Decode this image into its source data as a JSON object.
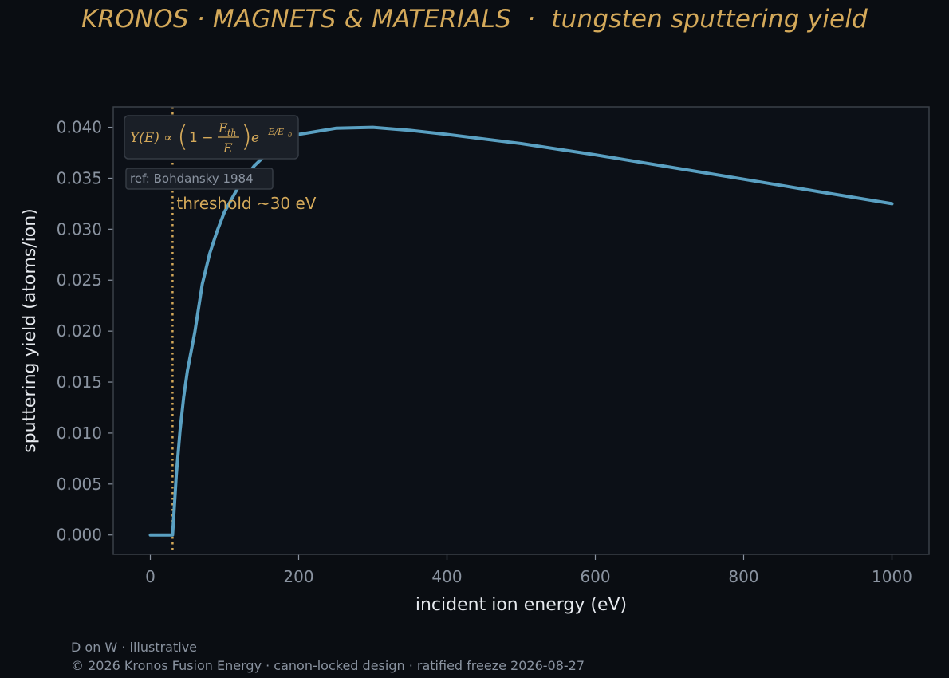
{
  "title": "KRONOS · MAGNETS & MATERIALS  ·  tungsten sputtering yield",
  "footer": {
    "note": "D on W · illustrative",
    "copyright": "© 2026 Kronos Fusion Energy · canon-locked design · ratified freeze 2026-08-27"
  },
  "colors": {
    "background": "#0a0d12",
    "plot_background": "#0c1017",
    "curve": "#5aa0c2",
    "accent": "#d4a95a",
    "text": "#e6e9ee",
    "tick_text": "#8a93a0",
    "spine": "#3a4048"
  },
  "chart_data": {
    "type": "line",
    "xlabel": "incident ion energy (eV)",
    "ylabel": "sputtering yield (atoms/ion)",
    "xlim": [
      -50,
      1050
    ],
    "ylim": [
      -0.0019,
      0.042
    ],
    "x_ticks": [
      0,
      200,
      400,
      600,
      800,
      1000
    ],
    "x_tick_labels": [
      "0",
      "200",
      "400",
      "600",
      "800",
      "1000"
    ],
    "y_ticks": [
      0,
      0.005,
      0.01,
      0.015,
      0.02,
      0.025,
      0.03,
      0.035,
      0.04
    ],
    "y_tick_labels": [
      "0.000",
      "0.005",
      "0.010",
      "0.015",
      "0.020",
      "0.025",
      "0.030",
      "0.035",
      "0.040"
    ],
    "grid": false,
    "series": [
      {
        "color": "#5aa0c2",
        "x": [
          0,
          30,
          35,
          40,
          45,
          50,
          60,
          70,
          80,
          90,
          100,
          120,
          140,
          160,
          180,
          200,
          250,
          300,
          350,
          400,
          500,
          600,
          700,
          800,
          900,
          1000
        ],
        "y": [
          0,
          0,
          0.0059,
          0.0102,
          0.0135,
          0.0161,
          0.0199,
          0.0246,
          0.0276,
          0.0298,
          0.0317,
          0.0343,
          0.0362,
          0.0376,
          0.0386,
          0.0393,
          0.0399,
          0.04,
          0.0397,
          0.0393,
          0.0384,
          0.0373,
          0.0361,
          0.0349,
          0.0337,
          0.0325
        ]
      }
    ],
    "threshold": {
      "x": 30,
      "label": "threshold ~30 eV"
    },
    "formula": {
      "lhs": "Y(E) ∝",
      "open": "(",
      "one_minus": "1 −",
      "numerator": "E",
      "numerator_sub": "th",
      "denominator": "E",
      "close": ")",
      "exp_base": "e",
      "exponent": "−E/E",
      "exponent_sub": "0"
    },
    "reference": "ref: Bohdansky 1984"
  }
}
